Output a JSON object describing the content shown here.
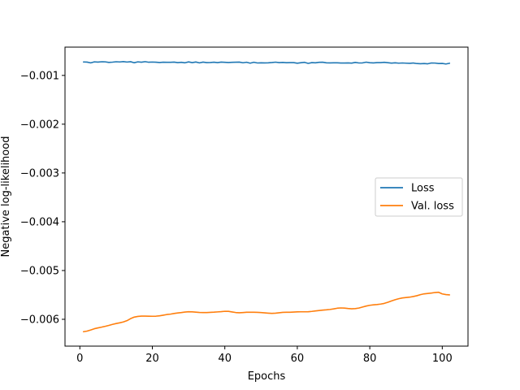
{
  "chart_data": {
    "type": "line",
    "title": "",
    "xlabel": "Epochs",
    "ylabel": "Negative log-likelihood",
    "xlim": [
      -4.1,
      107.1
    ],
    "ylim": [
      -0.00655,
      -0.00042
    ],
    "xticks": [
      0,
      20,
      40,
      60,
      80,
      100
    ],
    "xtick_labels": [
      "0",
      "20",
      "40",
      "60",
      "80",
      "100"
    ],
    "yticks": [
      -0.006,
      -0.005,
      -0.004,
      -0.003,
      -0.002,
      -0.001
    ],
    "ytick_labels": [
      "−0.006",
      "−0.005",
      "−0.004",
      "−0.003",
      "−0.002",
      "−0.001"
    ],
    "grid": false,
    "legend": "center-right",
    "series": [
      {
        "name": "Loss",
        "color": "#1f77b4",
        "x": [
          1,
          2,
          3,
          4,
          5,
          6,
          7,
          8,
          9,
          10,
          11,
          12,
          13,
          14,
          15,
          16,
          17,
          18,
          19,
          20,
          21,
          22,
          23,
          24,
          25,
          26,
          27,
          28,
          29,
          30,
          31,
          32,
          33,
          34,
          35,
          36,
          37,
          38,
          39,
          40,
          41,
          42,
          43,
          44,
          45,
          46,
          47,
          48,
          49,
          50,
          51,
          52,
          53,
          54,
          55,
          56,
          57,
          58,
          59,
          60,
          61,
          62,
          63,
          64,
          65,
          66,
          67,
          68,
          69,
          70,
          71,
          72,
          73,
          74,
          75,
          76,
          77,
          78,
          79,
          80,
          81,
          82,
          83,
          84,
          85,
          86,
          87,
          88,
          89,
          90,
          91,
          92,
          93,
          94,
          95,
          96,
          97,
          98,
          99,
          100,
          101,
          102
        ],
        "values": [
          -0.000724,
          -0.000727,
          -0.000743,
          -0.000722,
          -0.000727,
          -0.00072,
          -0.000722,
          -0.000733,
          -0.000728,
          -0.00072,
          -0.000724,
          -0.000717,
          -0.000726,
          -0.000719,
          -0.00074,
          -0.000722,
          -0.000729,
          -0.000718,
          -0.00073,
          -0.000726,
          -0.000729,
          -0.000736,
          -0.000729,
          -0.000732,
          -0.000731,
          -0.000727,
          -0.000737,
          -0.000731,
          -0.000741,
          -0.000723,
          -0.000738,
          -0.000725,
          -0.000743,
          -0.000727,
          -0.000737,
          -0.000735,
          -0.000729,
          -0.000738,
          -0.000727,
          -0.000731,
          -0.000736,
          -0.000731,
          -0.000729,
          -0.000727,
          -0.000741,
          -0.00073,
          -0.000749,
          -0.00073,
          -0.000745,
          -0.000742,
          -0.000743,
          -0.000742,
          -0.000736,
          -0.000728,
          -0.000737,
          -0.000734,
          -0.00074,
          -0.000737,
          -0.000737,
          -0.00075,
          -0.000739,
          -0.000732,
          -0.000753,
          -0.000738,
          -0.000741,
          -0.000731,
          -0.000729,
          -0.000742,
          -0.000744,
          -0.000742,
          -0.000742,
          -0.000746,
          -0.000746,
          -0.000744,
          -0.000748,
          -0.000733,
          -0.000745,
          -0.000743,
          -0.000728,
          -0.000739,
          -0.000744,
          -0.000738,
          -0.000737,
          -0.000731,
          -0.000739,
          -0.000748,
          -0.000742,
          -0.000749,
          -0.000745,
          -0.000749,
          -0.000752,
          -0.000746,
          -0.000757,
          -0.000761,
          -0.000757,
          -0.000762,
          -0.000745,
          -0.000747,
          -0.000756,
          -0.000754,
          -0.000766,
          -0.000751
        ]
      },
      {
        "name": "Val. loss",
        "color": "#ff7f0e",
        "x": [
          1,
          2,
          3,
          4,
          5,
          6,
          7,
          8,
          9,
          10,
          11,
          12,
          13,
          14,
          15,
          16,
          17,
          18,
          19,
          20,
          21,
          22,
          23,
          24,
          25,
          26,
          27,
          28,
          29,
          30,
          31,
          32,
          33,
          34,
          35,
          36,
          37,
          38,
          39,
          40,
          41,
          42,
          43,
          44,
          45,
          46,
          47,
          48,
          49,
          50,
          51,
          52,
          53,
          54,
          55,
          56,
          57,
          58,
          59,
          60,
          61,
          62,
          63,
          64,
          65,
          66,
          67,
          68,
          69,
          70,
          71,
          72,
          73,
          74,
          75,
          76,
          77,
          78,
          79,
          80,
          81,
          82,
          83,
          84,
          85,
          86,
          87,
          88,
          89,
          90,
          91,
          92,
          93,
          94,
          95,
          96,
          97,
          98,
          99,
          100,
          101,
          102
        ],
        "values": [
          -0.006254,
          -0.006242,
          -0.006219,
          -0.006193,
          -0.006176,
          -0.006161,
          -0.006144,
          -0.006125,
          -0.006104,
          -0.006087,
          -0.006072,
          -0.006055,
          -0.006028,
          -0.005986,
          -0.005955,
          -0.005941,
          -0.005934,
          -0.005935,
          -0.005937,
          -0.005938,
          -0.005936,
          -0.005929,
          -0.005916,
          -0.005902,
          -0.005894,
          -0.005881,
          -0.00587,
          -0.005862,
          -0.005852,
          -0.005845,
          -0.005847,
          -0.005853,
          -0.00586,
          -0.005862,
          -0.005862,
          -0.005858,
          -0.005854,
          -0.005848,
          -0.005843,
          -0.005836,
          -0.005837,
          -0.005849,
          -0.005861,
          -0.005866,
          -0.005861,
          -0.005855,
          -0.005855,
          -0.005856,
          -0.005857,
          -0.005862,
          -0.005868,
          -0.005874,
          -0.005879,
          -0.005875,
          -0.005866,
          -0.005858,
          -0.005856,
          -0.005855,
          -0.005852,
          -0.005848,
          -0.005846,
          -0.005846,
          -0.005845,
          -0.005838,
          -0.005828,
          -0.00582,
          -0.005812,
          -0.005806,
          -0.005798,
          -0.005787,
          -0.005773,
          -0.005767,
          -0.005771,
          -0.005779,
          -0.005784,
          -0.005781,
          -0.005769,
          -0.005748,
          -0.005729,
          -0.005713,
          -0.005704,
          -0.005697,
          -0.005688,
          -0.005674,
          -0.005651,
          -0.005623,
          -0.005598,
          -0.005578,
          -0.005562,
          -0.005554,
          -0.005546,
          -0.005533,
          -0.005516,
          -0.005494,
          -0.005478,
          -0.00547,
          -0.005462,
          -0.005451,
          -0.005446,
          -0.00548,
          -0.005493,
          -0.005499
        ]
      }
    ]
  }
}
